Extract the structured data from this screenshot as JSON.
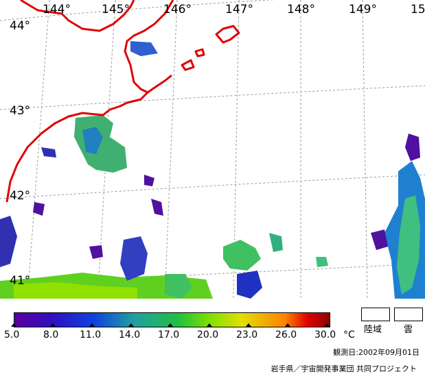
{
  "map": {
    "longitude_labels": [
      "144°",
      "145°",
      "146°",
      "147°",
      "148°",
      "149°",
      "15"
    ],
    "latitude_labels": [
      "44°",
      "43°",
      "42°",
      "41°"
    ],
    "coastline_color": "#e00000",
    "grid_color": "#9a9a9a"
  },
  "colorbar": {
    "ticks": [
      "5.0",
      "8.0",
      "11.0",
      "14.0",
      "17.0",
      "20.0",
      "23.0",
      "26.0",
      "30.0"
    ],
    "unit": "°C"
  },
  "legend": {
    "land_label": "陸域",
    "cloud_label": "雲"
  },
  "observation_date": "観測日:2002年09月01日",
  "credit": "岩手県／宇宙開発事業団 共同プロジェクト"
}
